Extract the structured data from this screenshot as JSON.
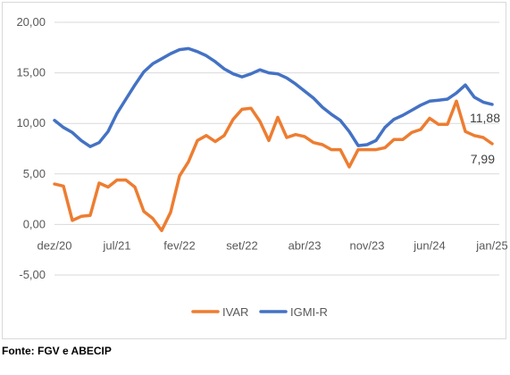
{
  "chart_data": {
    "type": "line",
    "title": "",
    "xlabel": "",
    "ylabel": "",
    "ylim": [
      -5,
      20
    ],
    "y_ticks": [
      "20,00",
      "15,00",
      "10,00",
      "5,00",
      "0,00",
      "-5,00"
    ],
    "y_tick_values": [
      20,
      15,
      10,
      5,
      0,
      -5
    ],
    "x_tick_labels": [
      "dez/20",
      "jul/21",
      "fev/22",
      "set/22",
      "abr/23",
      "nov/23",
      "jun/24",
      "jan/25"
    ],
    "x_tick_index": [
      0,
      7,
      14,
      21,
      28,
      35,
      42,
      49
    ],
    "grid": "horizontal",
    "legend_position": "bottom",
    "series": [
      {
        "name": "IVAR",
        "color": "#ED7D31",
        "end_label": "7,99",
        "values": [
          4.0,
          3.8,
          0.4,
          0.8,
          0.9,
          4.1,
          3.7,
          4.4,
          4.4,
          3.7,
          1.3,
          0.6,
          -0.6,
          1.2,
          4.8,
          6.2,
          8.3,
          8.8,
          8.2,
          8.8,
          10.4,
          11.4,
          11.5,
          10.2,
          8.3,
          10.6,
          8.6,
          8.9,
          8.7,
          8.1,
          7.9,
          7.4,
          7.4,
          5.7,
          7.4,
          7.4,
          7.4,
          7.6,
          8.4,
          8.4,
          9.1,
          9.4,
          10.5,
          9.9,
          9.9,
          12.2,
          9.2,
          8.8,
          8.6,
          7.99
        ]
      },
      {
        "name": "IGMI-R",
        "color": "#4472C4",
        "end_label": "11,88",
        "values": [
          10.3,
          9.6,
          9.1,
          8.3,
          7.7,
          8.1,
          9.2,
          11.0,
          12.4,
          13.8,
          15.1,
          15.9,
          16.4,
          16.9,
          17.3,
          17.4,
          17.1,
          16.7,
          16.1,
          15.4,
          14.9,
          14.6,
          14.9,
          15.3,
          15.0,
          14.9,
          14.5,
          13.9,
          13.2,
          12.5,
          11.6,
          10.9,
          10.3,
          9.2,
          7.8,
          7.9,
          8.3,
          9.6,
          10.4,
          10.8,
          11.3,
          11.8,
          12.2,
          12.3,
          12.4,
          13.0,
          13.8,
          12.6,
          12.1,
          11.88
        ]
      }
    ]
  },
  "source": "Fonte: FGV e ABECIP"
}
